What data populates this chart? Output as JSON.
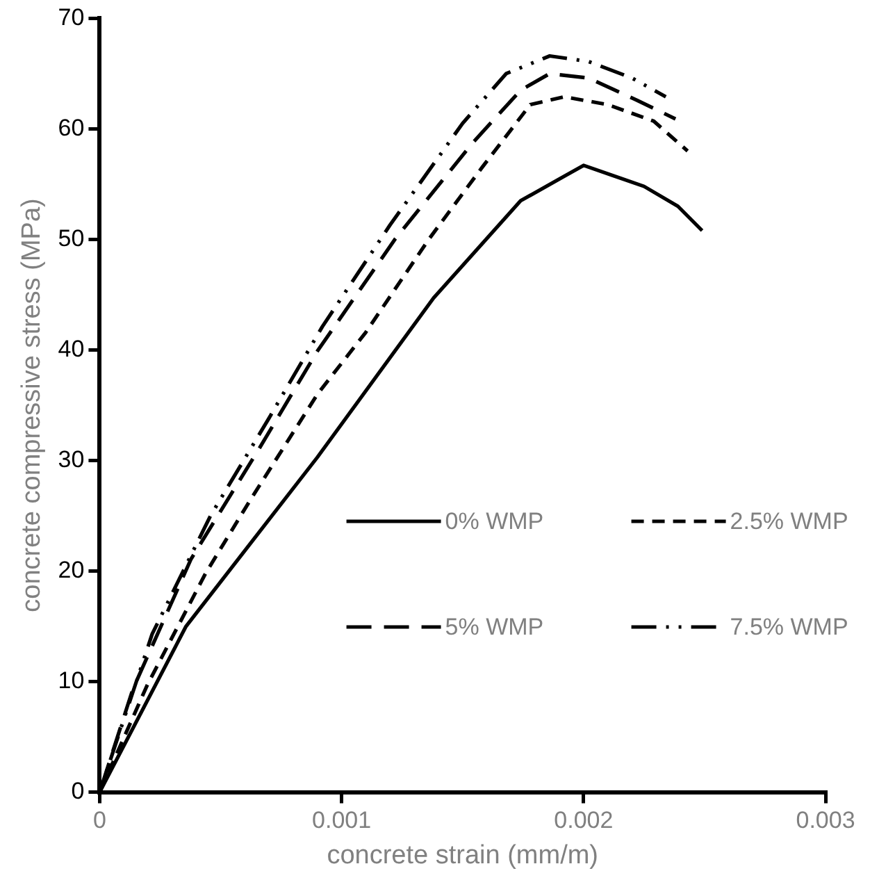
{
  "chart_data": {
    "type": "line",
    "xlabel": "concrete strain (mm/m)",
    "ylabel": "concrete compressive stress (MPa)",
    "xlim": [
      0,
      0.003
    ],
    "xticks": [
      0,
      0.001,
      0.002,
      0.003
    ],
    "ylim": [
      0,
      70
    ],
    "yticks": [
      0,
      10,
      20,
      30,
      40,
      50,
      60,
      70
    ],
    "grid": false,
    "legend": "bottom right",
    "marker": "none",
    "series": [
      {
        "name": "0% WMP",
        "color": "#000000",
        "line_style": "solid",
        "x": [
          0,
          0.000357,
          0.0009,
          0.00138,
          0.00174,
          0.002,
          0.00225,
          0.00239,
          0.00249
        ],
        "values": [
          0,
          15.0,
          30.3,
          44.7,
          53.5,
          56.7,
          54.8,
          53.0,
          50.8
        ]
      },
      {
        "name": "2.5% WMP",
        "color": "#000000",
        "line_style": "dashed",
        "x": [
          0,
          0.000197,
          0.000438,
          0.000619,
          0.0009,
          0.0011,
          0.00136,
          0.00158,
          0.00178,
          0.00192,
          0.0021,
          0.00229,
          0.00243
        ],
        "values": [
          0,
          9.7,
          19.8,
          26.3,
          36.0,
          41.6,
          50.0,
          56.5,
          62.2,
          62.9,
          62.2,
          60.7,
          58.0
        ]
      },
      {
        "name": "5% WMP",
        "color": "#000000",
        "line_style": "long_dashed",
        "x": [
          0,
          0.000137,
          0.000378,
          0.00066,
          0.0009,
          0.00122,
          0.00154,
          0.00174,
          0.00186,
          0.00202,
          0.00222,
          0.00238
        ],
        "values": [
          0,
          9.3,
          21.1,
          31.1,
          39.9,
          50.0,
          58.7,
          63.5,
          65.0,
          64.6,
          62.6,
          60.9
        ]
      },
      {
        "name": "7.5% WMP",
        "color": "#000000",
        "line_style": "dash_dot_dot",
        "x": [
          0,
          0.000217,
          0.000458,
          0.000699,
          0.00092,
          0.0012,
          0.0015,
          0.00168,
          0.00186,
          0.00202,
          0.0022,
          0.00234
        ],
        "values": [
          0,
          14.3,
          25.0,
          33.8,
          42.1,
          51.3,
          60.5,
          65.0,
          66.6,
          66.1,
          64.6,
          62.9
        ]
      }
    ]
  }
}
